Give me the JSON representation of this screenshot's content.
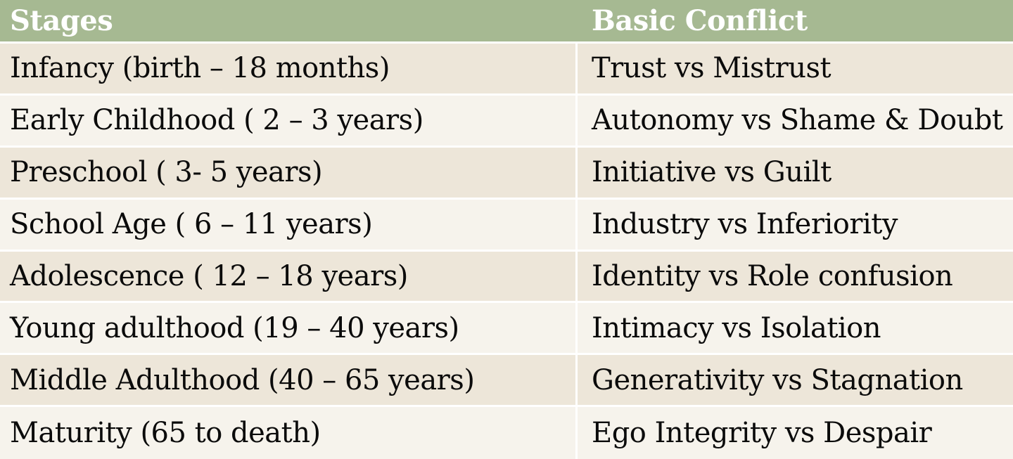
{
  "table": {
    "headers": {
      "stages": "Stages",
      "conflict": "Basic  Conflict"
    },
    "rows": [
      {
        "stage": "Infancy (birth – 18 months)",
        "conflict": "Trust vs Mistrust"
      },
      {
        "stage": "Early Childhood ( 2 – 3 years)",
        "conflict": "Autonomy vs Shame & Doubt"
      },
      {
        "stage": "Preschool ( 3- 5 years)",
        "conflict": "Initiative vs Guilt"
      },
      {
        "stage": "School Age ( 6 – 11 years)",
        "conflict": "Industry vs Inferiority"
      },
      {
        "stage": "Adolescence ( 12 – 18 years)",
        "conflict": "Identity vs Role confusion"
      },
      {
        "stage": "Young adulthood (19 – 40 years)",
        "conflict": "Intimacy vs Isolation"
      },
      {
        "stage": "Middle Adulthood (40 – 65 years)",
        "conflict": "Generativity  vs Stagnation"
      },
      {
        "stage": "Maturity (65 to death)",
        "conflict": "Ego Integrity vs Despair"
      }
    ]
  },
  "colors": {
    "header_bg": "#a6b992",
    "row_odd_bg": "#ede6d9",
    "row_even_bg": "#f6f3ec"
  }
}
